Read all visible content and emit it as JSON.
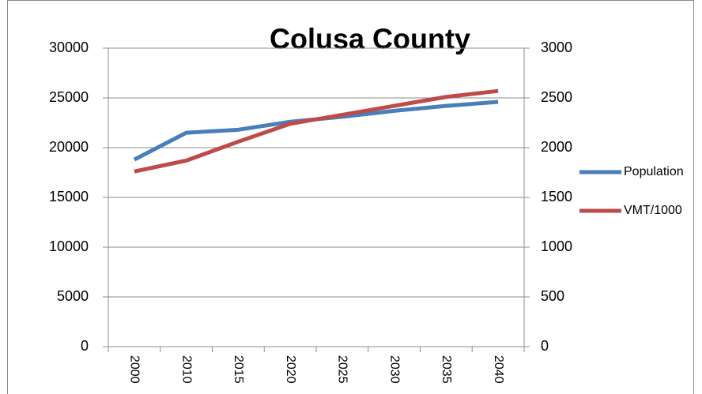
{
  "chart_data": {
    "type": "line",
    "title": "Colusa County",
    "categories": [
      "2000",
      "2010",
      "2015",
      "2020",
      "2025",
      "2030",
      "2035",
      "2040"
    ],
    "series": [
      {
        "name": "Population",
        "color": "#4a7ebb",
        "values": [
          18800,
          21500,
          21800,
          22600,
          23100,
          23700,
          24200,
          24600
        ]
      },
      {
        "name": "VMT/1000",
        "color": "#be4b48",
        "axis": "y2",
        "values": [
          1760,
          1870,
          2060,
          2240,
          2330,
          2420,
          2510,
          2570
        ]
      }
    ],
    "ylim": [
      0,
      30000
    ],
    "yticks": [
      0,
      5000,
      10000,
      15000,
      20000,
      25000,
      30000
    ],
    "y2lim": [
      0,
      3000
    ],
    "y2ticks": [
      0,
      500,
      1000,
      1500,
      2000,
      2500,
      3000
    ],
    "grid": true,
    "legend": "right"
  }
}
